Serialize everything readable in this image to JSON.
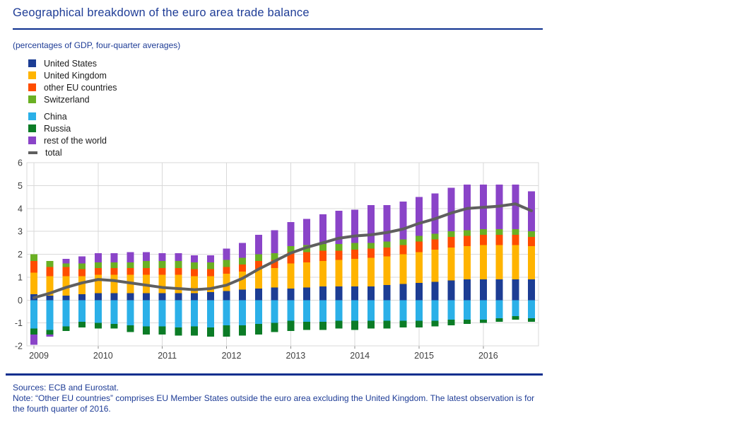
{
  "header": {
    "title": "Geographical breakdown of the euro area trade balance",
    "subtitle": "(percentages of GDP, four-quarter averages)"
  },
  "footer": {
    "sources": "Sources: ECB and Eurostat.",
    "note": "Note: “Other EU countries” comprises EU Member States outside the euro area excluding the United Kingdom. The latest observation is for the fourth quarter of 2016."
  },
  "colors": {
    "title_text": "#1e3c96",
    "rule": "#0d2f8e",
    "axis_text": "#3f3f3f",
    "grid": "#d9d9d9",
    "united_states": "#1c3d94",
    "united_kingdom": "#ffb400",
    "other_eu": "#ff4d00",
    "switzerland": "#6ab023",
    "china": "#2bb0e8",
    "russia": "#0b7c26",
    "rest_of_world": "#8a44c8",
    "total": "#5f5f5f"
  },
  "chart_data": {
    "type": "bar",
    "subtype": "stacked-bars-with-total-line",
    "title": "Geographical breakdown of the euro area trade balance",
    "xlabel": "",
    "ylabel": "percentages of GDP, four-quarter averages",
    "ylim": [
      -2,
      6
    ],
    "yticks": [
      6,
      5,
      4,
      3,
      2,
      1,
      0,
      -1,
      -2
    ],
    "grid": true,
    "legend_position": "top-left",
    "year_labels": [
      "2009",
      "2010",
      "2011",
      "2012",
      "2013",
      "2014",
      "2015",
      "2016"
    ],
    "categories": [
      "2009Q1",
      "2009Q2",
      "2009Q3",
      "2009Q4",
      "2010Q1",
      "2010Q2",
      "2010Q3",
      "2010Q4",
      "2011Q1",
      "2011Q2",
      "2011Q3",
      "2011Q4",
      "2012Q1",
      "2012Q2",
      "2012Q3",
      "2012Q4",
      "2013Q1",
      "2013Q2",
      "2013Q3",
      "2013Q4",
      "2014Q1",
      "2014Q2",
      "2014Q3",
      "2014Q4",
      "2015Q1",
      "2015Q2",
      "2015Q3",
      "2015Q4",
      "2016Q1",
      "2016Q2",
      "2016Q3",
      "2016Q4"
    ],
    "series": [
      {
        "name": "United States",
        "color": "#1c3d94",
        "values": [
          0.25,
          0.2,
          0.2,
          0.25,
          0.3,
          0.3,
          0.3,
          0.3,
          0.3,
          0.3,
          0.3,
          0.35,
          0.4,
          0.45,
          0.5,
          0.55,
          0.5,
          0.55,
          0.6,
          0.6,
          0.6,
          0.6,
          0.65,
          0.7,
          0.75,
          0.8,
          0.85,
          0.9,
          0.9,
          0.9,
          0.9,
          0.9
        ]
      },
      {
        "name": "United Kingdom",
        "color": "#ffb400",
        "values": [
          0.95,
          0.85,
          0.85,
          0.8,
          0.8,
          0.8,
          0.8,
          0.8,
          0.8,
          0.8,
          0.75,
          0.7,
          0.75,
          0.8,
          0.85,
          0.85,
          1.1,
          1.1,
          1.1,
          1.15,
          1.2,
          1.25,
          1.25,
          1.3,
          1.35,
          1.4,
          1.45,
          1.45,
          1.5,
          1.5,
          1.5,
          1.45
        ]
      },
      {
        "name": "other EU countries",
        "color": "#ff4d00",
        "values": [
          0.5,
          0.4,
          0.4,
          0.3,
          0.3,
          0.3,
          0.3,
          0.3,
          0.3,
          0.3,
          0.3,
          0.3,
          0.3,
          0.3,
          0.35,
          0.35,
          0.5,
          0.45,
          0.45,
          0.4,
          0.4,
          0.4,
          0.4,
          0.4,
          0.45,
          0.45,
          0.45,
          0.45,
          0.45,
          0.45,
          0.45,
          0.4
        ]
      },
      {
        "name": "Switzerland",
        "color": "#6ab023",
        "values": [
          0.3,
          0.25,
          0.15,
          0.25,
          0.25,
          0.25,
          0.25,
          0.3,
          0.3,
          0.3,
          0.3,
          0.3,
          0.3,
          0.3,
          0.3,
          0.3,
          0.25,
          0.3,
          0.3,
          0.3,
          0.3,
          0.25,
          0.25,
          0.25,
          0.25,
          0.25,
          0.25,
          0.25,
          0.25,
          0.25,
          0.25,
          0.25
        ]
      },
      {
        "name": "China",
        "color": "#2bb0e8",
        "values": [
          -1.25,
          -1.3,
          -1.15,
          -0.95,
          -1.0,
          -1.05,
          -1.1,
          -1.15,
          -1.15,
          -1.2,
          -1.15,
          -1.2,
          -1.1,
          -1.1,
          -1.05,
          -1.0,
          -0.9,
          -0.95,
          -0.95,
          -0.9,
          -0.9,
          -0.9,
          -0.9,
          -0.9,
          -0.9,
          -0.9,
          -0.85,
          -0.85,
          -0.85,
          -0.8,
          -0.7,
          -0.8
        ]
      },
      {
        "name": "Russia",
        "color": "#0b7c26",
        "values": [
          -0.25,
          -0.2,
          -0.2,
          -0.25,
          -0.25,
          -0.2,
          -0.3,
          -0.35,
          -0.35,
          -0.35,
          -0.4,
          -0.4,
          -0.5,
          -0.45,
          -0.45,
          -0.4,
          -0.45,
          -0.35,
          -0.35,
          -0.35,
          -0.4,
          -0.35,
          -0.35,
          -0.3,
          -0.3,
          -0.25,
          -0.25,
          -0.2,
          -0.15,
          -0.15,
          -0.15,
          -0.15
        ]
      },
      {
        "name": "rest of the world",
        "color": "#8a44c8",
        "values": [
          -0.45,
          -0.1,
          0.2,
          0.3,
          0.4,
          0.4,
          0.45,
          0.4,
          0.35,
          0.35,
          0.3,
          0.3,
          0.5,
          0.65,
          0.85,
          1.0,
          1.05,
          1.15,
          1.3,
          1.45,
          1.45,
          1.65,
          1.6,
          1.65,
          1.7,
          1.75,
          1.9,
          2.0,
          1.95,
          1.95,
          1.95,
          1.75
        ]
      }
    ],
    "line": {
      "name": "total",
      "color": "#5f5f5f",
      "values": [
        0.1,
        0.3,
        0.55,
        0.75,
        0.9,
        0.85,
        0.75,
        0.65,
        0.55,
        0.5,
        0.45,
        0.5,
        0.65,
        0.95,
        1.35,
        1.7,
        2.05,
        2.3,
        2.5,
        2.7,
        2.8,
        2.85,
        2.95,
        3.1,
        3.35,
        3.55,
        3.8,
        4.0,
        4.05,
        4.1,
        4.2,
        3.9
      ]
    }
  }
}
